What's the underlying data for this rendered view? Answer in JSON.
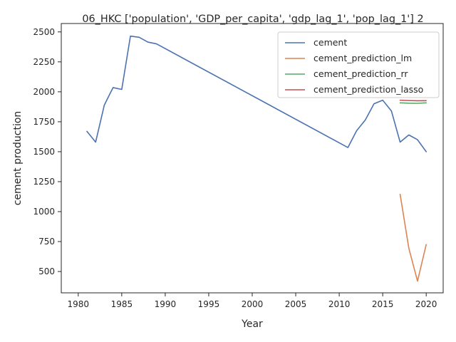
{
  "chart_data": {
    "type": "line",
    "title": "06_HKC ['population', 'GDP_per_capita', 'gdp_lag_1', 'pop_lag_1'] 2",
    "xlabel": "Year",
    "ylabel": "cement production",
    "xlim": [
      1978.05,
      2021.95
    ],
    "ylim": [
      322,
      2570
    ],
    "xticks": [
      1980,
      1985,
      1990,
      1995,
      2000,
      2005,
      2010,
      2015,
      2020
    ],
    "yticks": [
      500,
      750,
      1000,
      1250,
      1500,
      1750,
      2000,
      2250,
      2500
    ],
    "grid": false,
    "legend_position": "top-right",
    "series": [
      {
        "name": "cement",
        "color": "#4c72b0",
        "x": [
          1981,
          1982,
          1983,
          1984,
          1985,
          1986,
          1987,
          1988,
          1989,
          2011,
          2012,
          2013,
          2014,
          2015,
          2016,
          2017,
          2018,
          2019,
          2020
        ],
        "y": [
          1670,
          1580,
          1890,
          2035,
          2020,
          2465,
          2455,
          2415,
          2400,
          1535,
          1675,
          1765,
          1900,
          1930,
          1840,
          1580,
          1640,
          1600,
          1500
        ]
      },
      {
        "name": "cement_prediction_lm",
        "color": "#dd8452",
        "x": [
          2017,
          2018,
          2019,
          2020
        ],
        "y": [
          1145,
          695,
          420,
          725
        ]
      },
      {
        "name": "cement_prediction_rr",
        "color": "#55a868",
        "x": [
          2017,
          2018,
          2019,
          2020
        ],
        "y": [
          1908,
          1905,
          1904,
          1908
        ]
      },
      {
        "name": "cement_prediction_lasso",
        "color": "#c44e52",
        "x": [
          2017,
          2018,
          2019,
          2020
        ],
        "y": [
          1930,
          1927,
          1925,
          1926
        ]
      }
    ]
  }
}
